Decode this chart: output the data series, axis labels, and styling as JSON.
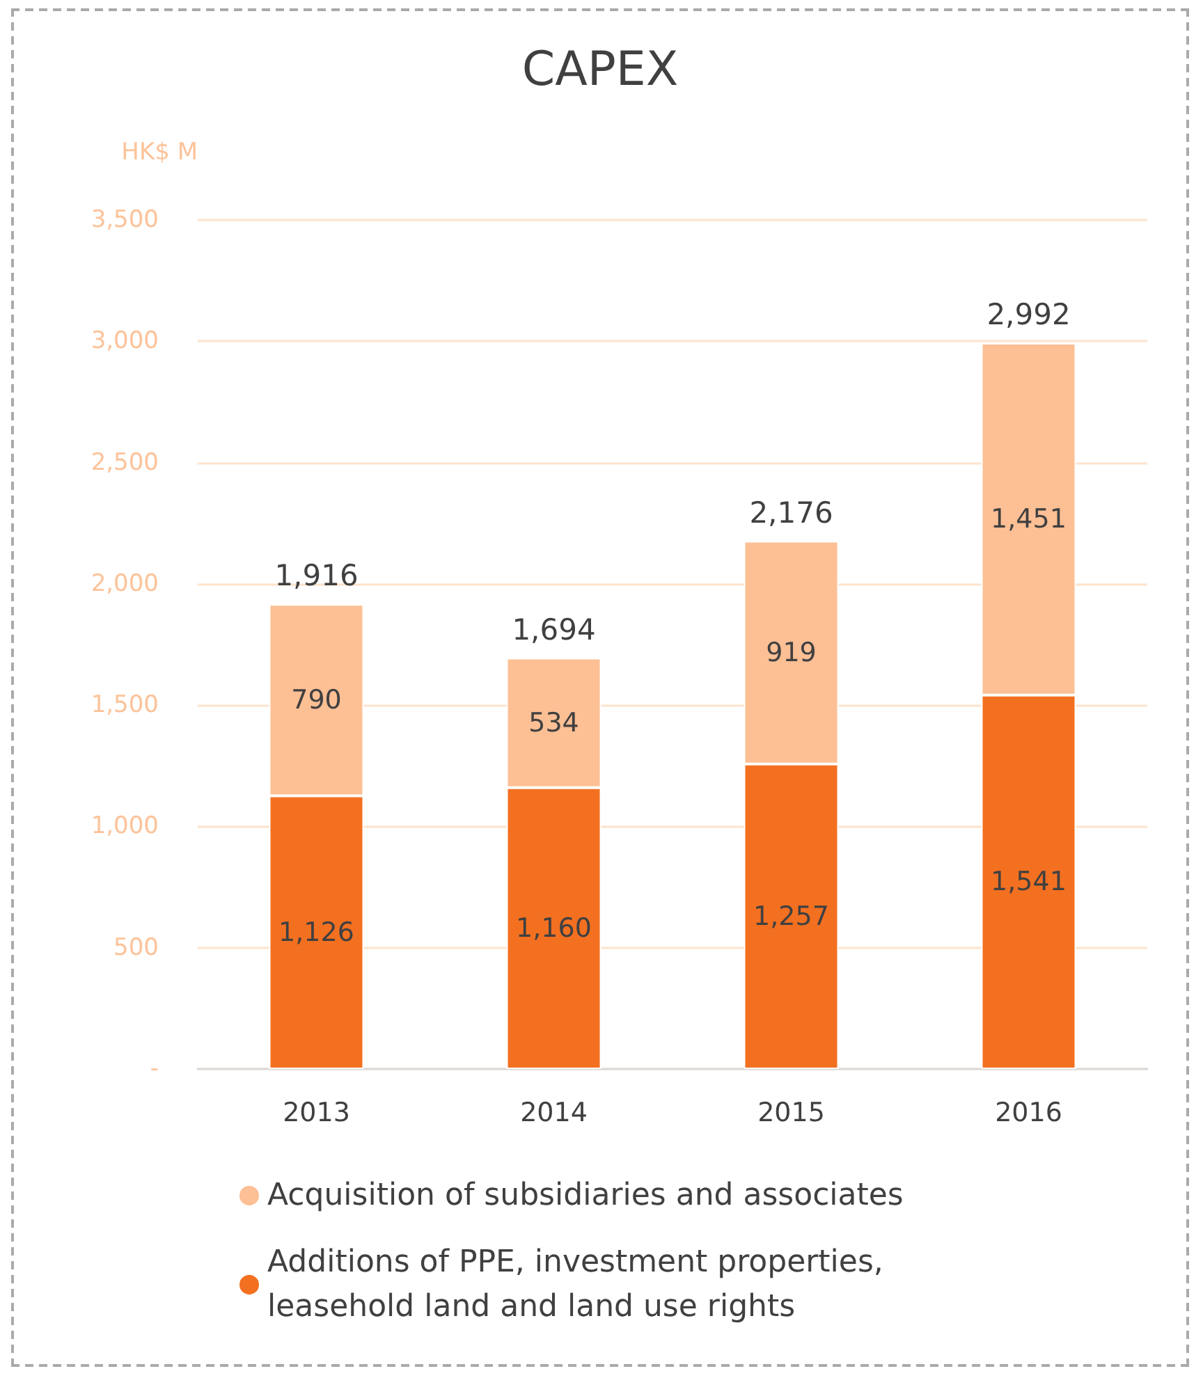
{
  "chart_data": {
    "type": "bar",
    "title": "CAPEX",
    "ylabel": "HK$ M",
    "categories": [
      "2013",
      "2014",
      "2015",
      "2016"
    ],
    "series": [
      {
        "name": "Additions of PPE, investment properties, leasehold land and land use rights",
        "color": "#f37021",
        "values": [
          1126,
          1160,
          1257,
          1541
        ],
        "value_labels": [
          "1,126",
          "1,160",
          "1,257",
          "1,541"
        ]
      },
      {
        "name": "Acquisition of subsidiaries and associates",
        "color": "#fdbf94",
        "values": [
          790,
          534,
          919,
          1451
        ],
        "value_labels": [
          "790",
          "534",
          "919",
          "1,451"
        ]
      }
    ],
    "stacked": true,
    "totals": [
      "1,916",
      "1,694",
      "2,176",
      "2,992"
    ],
    "ylim": [
      0,
      3500
    ],
    "yticks": [
      {
        "value": 0,
        "label": "-"
      },
      500,
      {
        "value": 1000,
        "label": "1,000"
      },
      {
        "value": 1500,
        "label": "1,500"
      },
      {
        "value": 2000,
        "label": "2,000"
      },
      {
        "value": 2500,
        "label": "2,500"
      },
      {
        "value": 3000,
        "label": "3,000"
      },
      {
        "value": 3500,
        "label": "3,500"
      }
    ],
    "grid": "y",
    "legend": "bottom"
  }
}
